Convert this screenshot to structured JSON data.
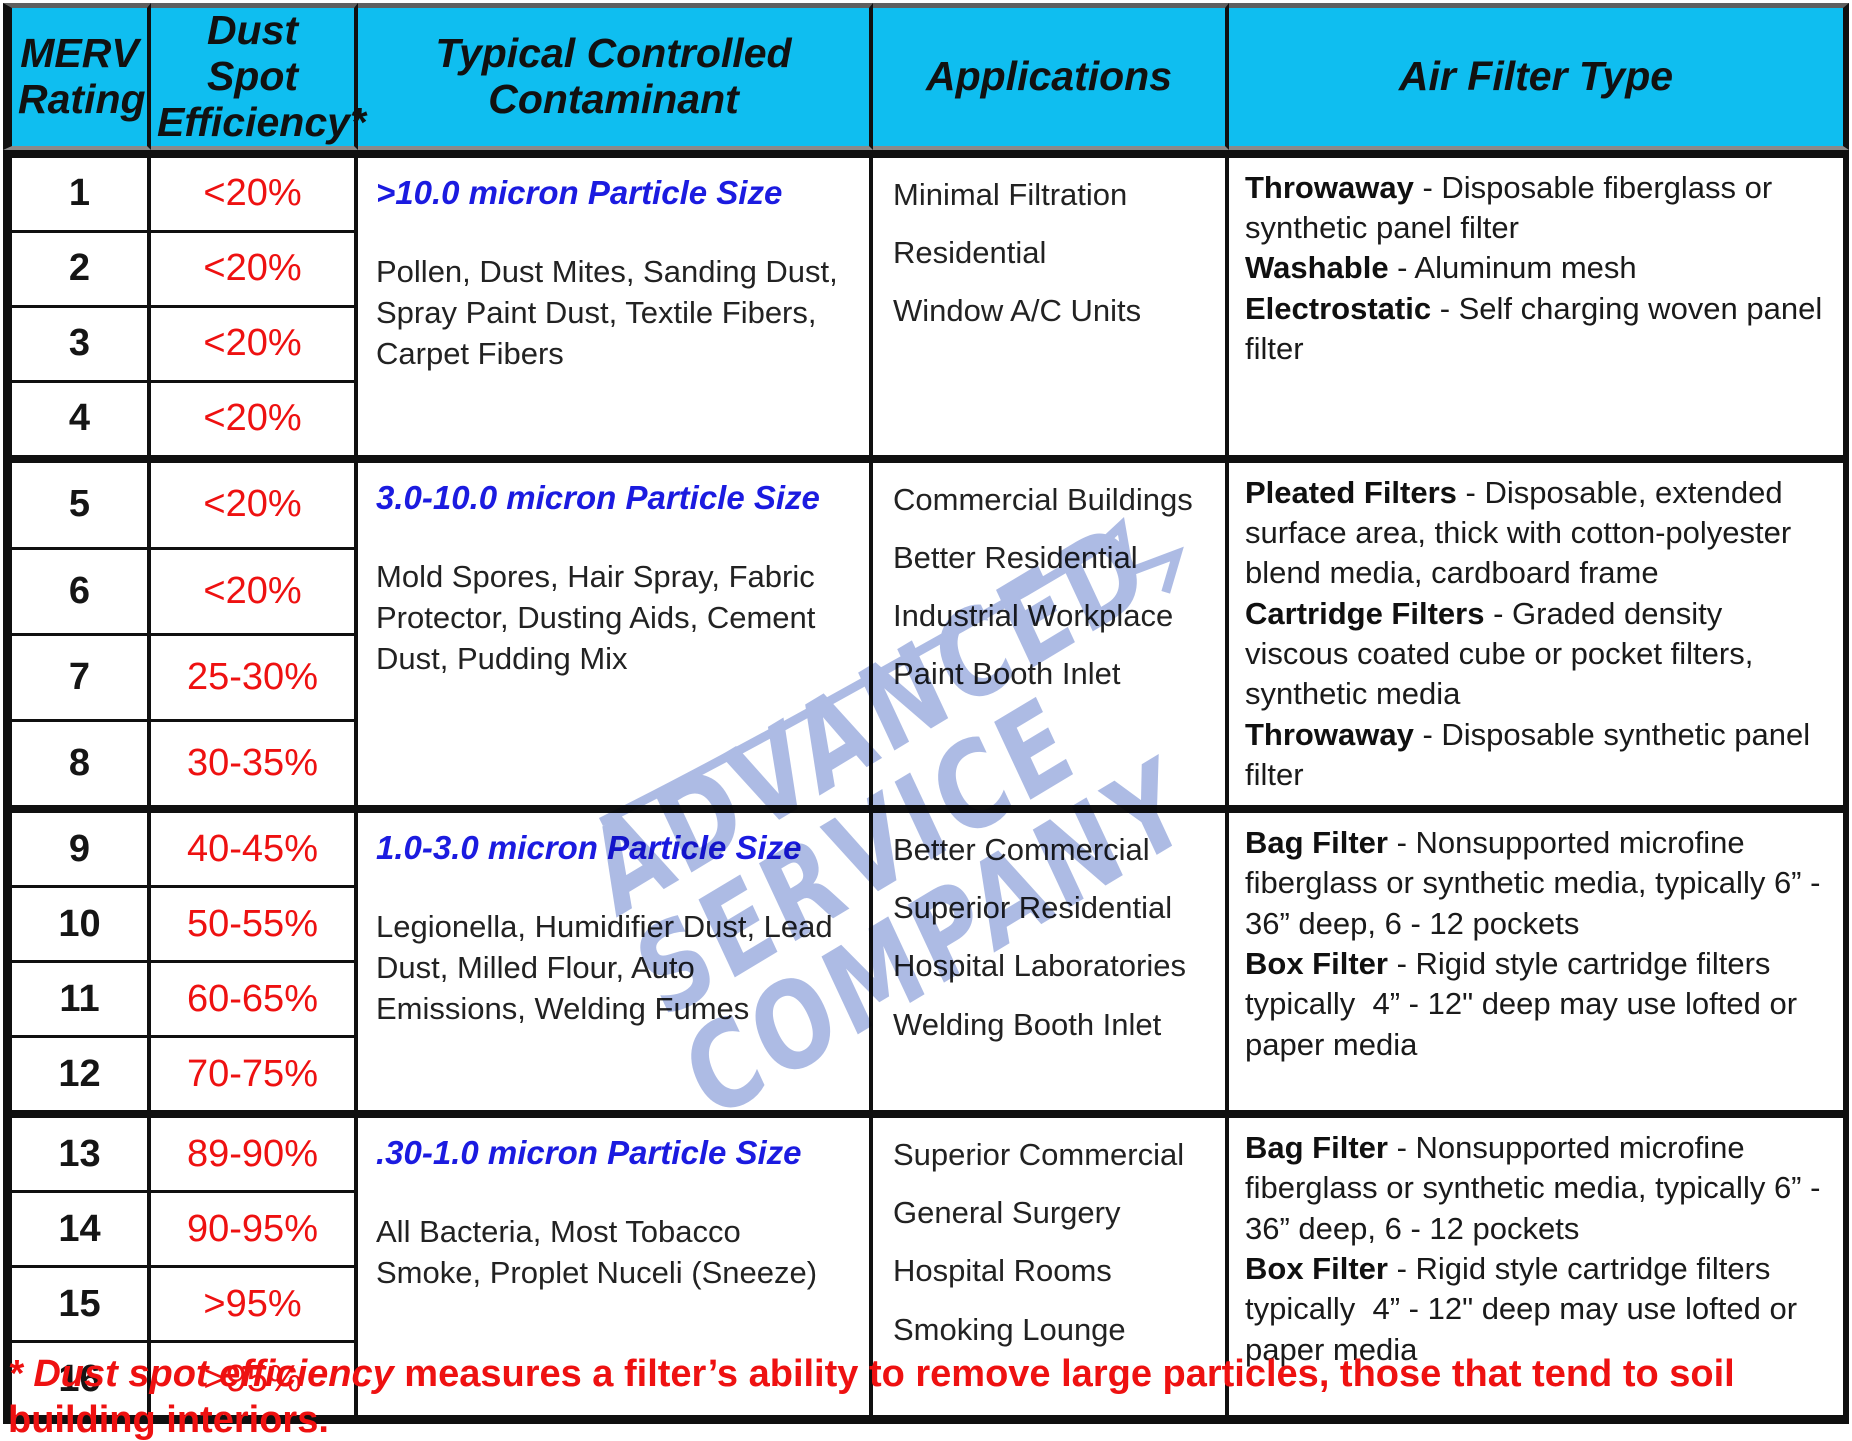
{
  "colors": {
    "header_bg": "#0fbef0",
    "value_red": "#ee1111",
    "particle_blue": "#1b1be0",
    "footnote_red": "#ee1111",
    "watermark_blue": "#a9b8e3"
  },
  "header": {
    "columns": [
      "MERV Rating",
      "Dust Spot Efficiency*",
      "Typical Controlled Contaminant",
      "Applications",
      "Air Filter Type"
    ]
  },
  "groups": [
    {
      "rows": [
        {
          "rating": "1",
          "efficiency": "<20%"
        },
        {
          "rating": "2",
          "efficiency": "<20%"
        },
        {
          "rating": "3",
          "efficiency": "<20%"
        },
        {
          "rating": "4",
          "efficiency": "<20%"
        }
      ],
      "contaminant": {
        "heading": ">10.0 micron Particle Size",
        "text": "Pollen, Dust Mites, Sanding Dust, Spray Paint Dust, Textile Fibers, Carpet Fibers"
      },
      "applications": [
        "Minimal Filtration",
        "Residential",
        "Window A/C Units"
      ],
      "air_filters": [
        {
          "term": "Throwaway",
          "desc": " - Disposable fiberglass or synthetic panel filter"
        },
        {
          "term": "Washable",
          "desc": " - Aluminum mesh"
        },
        {
          "term": "Electrostatic",
          "desc": " - Self charging woven panel filter"
        }
      ]
    },
    {
      "rows": [
        {
          "rating": "5",
          "efficiency": "<20%"
        },
        {
          "rating": "6",
          "efficiency": "<20%"
        },
        {
          "rating": "7",
          "efficiency": "25-30%"
        },
        {
          "rating": "8",
          "efficiency": "30-35%"
        }
      ],
      "contaminant": {
        "heading": "3.0-10.0 micron Particle Size",
        "text": "Mold Spores, Hair Spray, Fabric Protector, Dusting Aids, Cement Dust, Pudding Mix"
      },
      "applications": [
        "Commercial Buildings",
        "Better Residential",
        "Industrial Workplace",
        "Paint Booth Inlet"
      ],
      "air_filters": [
        {
          "term": "Pleated Filters",
          "desc": " - Disposable, extended surface area, thick with cotton-polyester blend media, cardboard frame"
        },
        {
          "term": "Cartridge Filters",
          "desc": " - Graded density viscous coated cube or pocket filters, synthetic media"
        },
        {
          "term": "Throwaway",
          "desc": " - Disposable synthetic panel filter"
        }
      ]
    },
    {
      "rows": [
        {
          "rating": "9",
          "efficiency": "40-45%"
        },
        {
          "rating": "10",
          "efficiency": "50-55%"
        },
        {
          "rating": "11",
          "efficiency": "60-65%"
        },
        {
          "rating": "12",
          "efficiency": "70-75%"
        }
      ],
      "contaminant": {
        "heading": "1.0-3.0 micron Particle Size",
        "text": "Legionella, Humidifier Dust, Lead Dust, Milled Flour, Auto Emissions, Welding Fumes"
      },
      "applications": [
        "Better Commercial",
        "Superior Residential",
        "Hospital Laboratories",
        "Welding Booth Inlet"
      ],
      "air_filters": [
        {
          "term": "Bag Filter",
          "desc": " - Nonsupported microfine fiberglass or synthetic media, typically 6” - 36” deep, 6 - 12 pockets"
        },
        {
          "term": "Box Filter",
          "desc": " - Rigid style cartridge filters typically  4” - 12\" deep may use lofted or paper media"
        }
      ]
    },
    {
      "rows": [
        {
          "rating": "13",
          "efficiency": "89-90%"
        },
        {
          "rating": "14",
          "efficiency": "90-95%"
        },
        {
          "rating": "15",
          "efficiency": ">95%"
        },
        {
          "rating": "16",
          "efficiency": ">95%"
        }
      ],
      "contaminant": {
        "heading": ".30-1.0 micron Particle Size",
        "text": "All Bacteria, Most Tobacco Smoke, Proplet Nuceli (Sneeze)"
      },
      "applications": [
        "Superior Commercial",
        "General Surgery",
        "Hospital Rooms",
        "Smoking Lounge"
      ],
      "air_filters": [
        {
          "term": "Bag Filter",
          "desc": " - Nonsupported microfine fiberglass or synthetic media, typically 6” - 36” deep, 6 - 12 pockets"
        },
        {
          "term": "Box Filter",
          "desc": " - Rigid style cartridge filters typically  4” - 12\" deep may use lofted or paper media"
        }
      ]
    }
  ],
  "footnote": {
    "lead": "* Dust spot efficiency",
    "rest": " measures a filter’s ability to remove large particles, those that tend to soil building interiors."
  },
  "watermark": {
    "lines": [
      "ADVANCED",
      "SERVICE",
      "COMPANY"
    ]
  }
}
